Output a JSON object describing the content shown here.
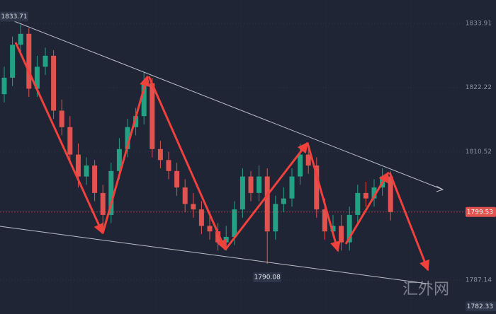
{
  "chart_data": {
    "type": "candlestick",
    "up_color": "#22a184",
    "down_color": "#e2524f",
    "ylim": [
      1780.95,
      1838.16
    ],
    "yticks": [
      1833.91,
      1822.22,
      1810.52,
      1787.14
    ],
    "grid": true,
    "open": [
      1821,
      1824,
      1830,
      1832,
      1822,
      1826,
      1828,
      1818,
      1815,
      1810,
      1806,
      1808,
      1803,
      1799,
      1807,
      1811,
      1815,
      1817,
      1823,
      1811,
      1809,
      1807,
      1804,
      1801,
      1800,
      1797,
      1796,
      1794,
      1795,
      1800,
      1806,
      1803,
      1806,
      1796,
      1801,
      1802,
      1806,
      1810,
      1808,
      1800,
      1796,
      1797,
      1794,
      1799,
      1803,
      1802,
      1804,
      1806
    ],
    "high": [
      1826,
      1831.5,
      1833.71,
      1833,
      1828,
      1829.5,
      1829,
      1820,
      1817,
      1812,
      1809.5,
      1809,
      1804.5,
      1808.5,
      1813,
      1816.5,
      1818.5,
      1825,
      1824,
      1812.5,
      1810.5,
      1808.5,
      1805.5,
      1803,
      1801.5,
      1799,
      1797.5,
      1797,
      1801.5,
      1807.5,
      1807,
      1808,
      1807.5,
      1802.5,
      1804,
      1807.5,
      1812,
      1811.5,
      1809.5,
      1802,
      1799,
      1799,
      1800.5,
      1804.5,
      1805,
      1805.5,
      1807.5,
      1807
    ],
    "low": [
      1819.5,
      1822.5,
      1828.5,
      1820.5,
      1820.5,
      1824.5,
      1816.5,
      1813.5,
      1808.5,
      1804,
      1804.5,
      1801.5,
      1797,
      1797.5,
      1805.5,
      1809.5,
      1813.5,
      1815.5,
      1809.5,
      1807.5,
      1805.5,
      1802.5,
      1799.5,
      1798.5,
      1795.5,
      1794.5,
      1792.5,
      1792.5,
      1793.5,
      1798.5,
      1801.5,
      1801.5,
      1790.08,
      1794.5,
      1799.5,
      1800.5,
      1804.5,
      1806.5,
      1798.5,
      1794.5,
      1795,
      1792.5,
      1792.5,
      1797.5,
      1800.5,
      1800.5,
      1802.5,
      1798
    ],
    "close": [
      1824,
      1830,
      1832,
      1822,
      1826,
      1828,
      1818,
      1815,
      1810,
      1806,
      1808,
      1803,
      1799,
      1807,
      1811,
      1815,
      1817,
      1823,
      1811,
      1809,
      1807,
      1804,
      1801,
      1800,
      1797,
      1796,
      1794,
      1795,
      1800,
      1806,
      1803,
      1806,
      1796,
      1801,
      1802,
      1806,
      1810,
      1808,
      1800,
      1796,
      1797,
      1794,
      1799,
      1803,
      1802,
      1804,
      1806,
      1799.53
    ],
    "cursor_price": 1782.33,
    "watermark": "汇外网"
  }
}
